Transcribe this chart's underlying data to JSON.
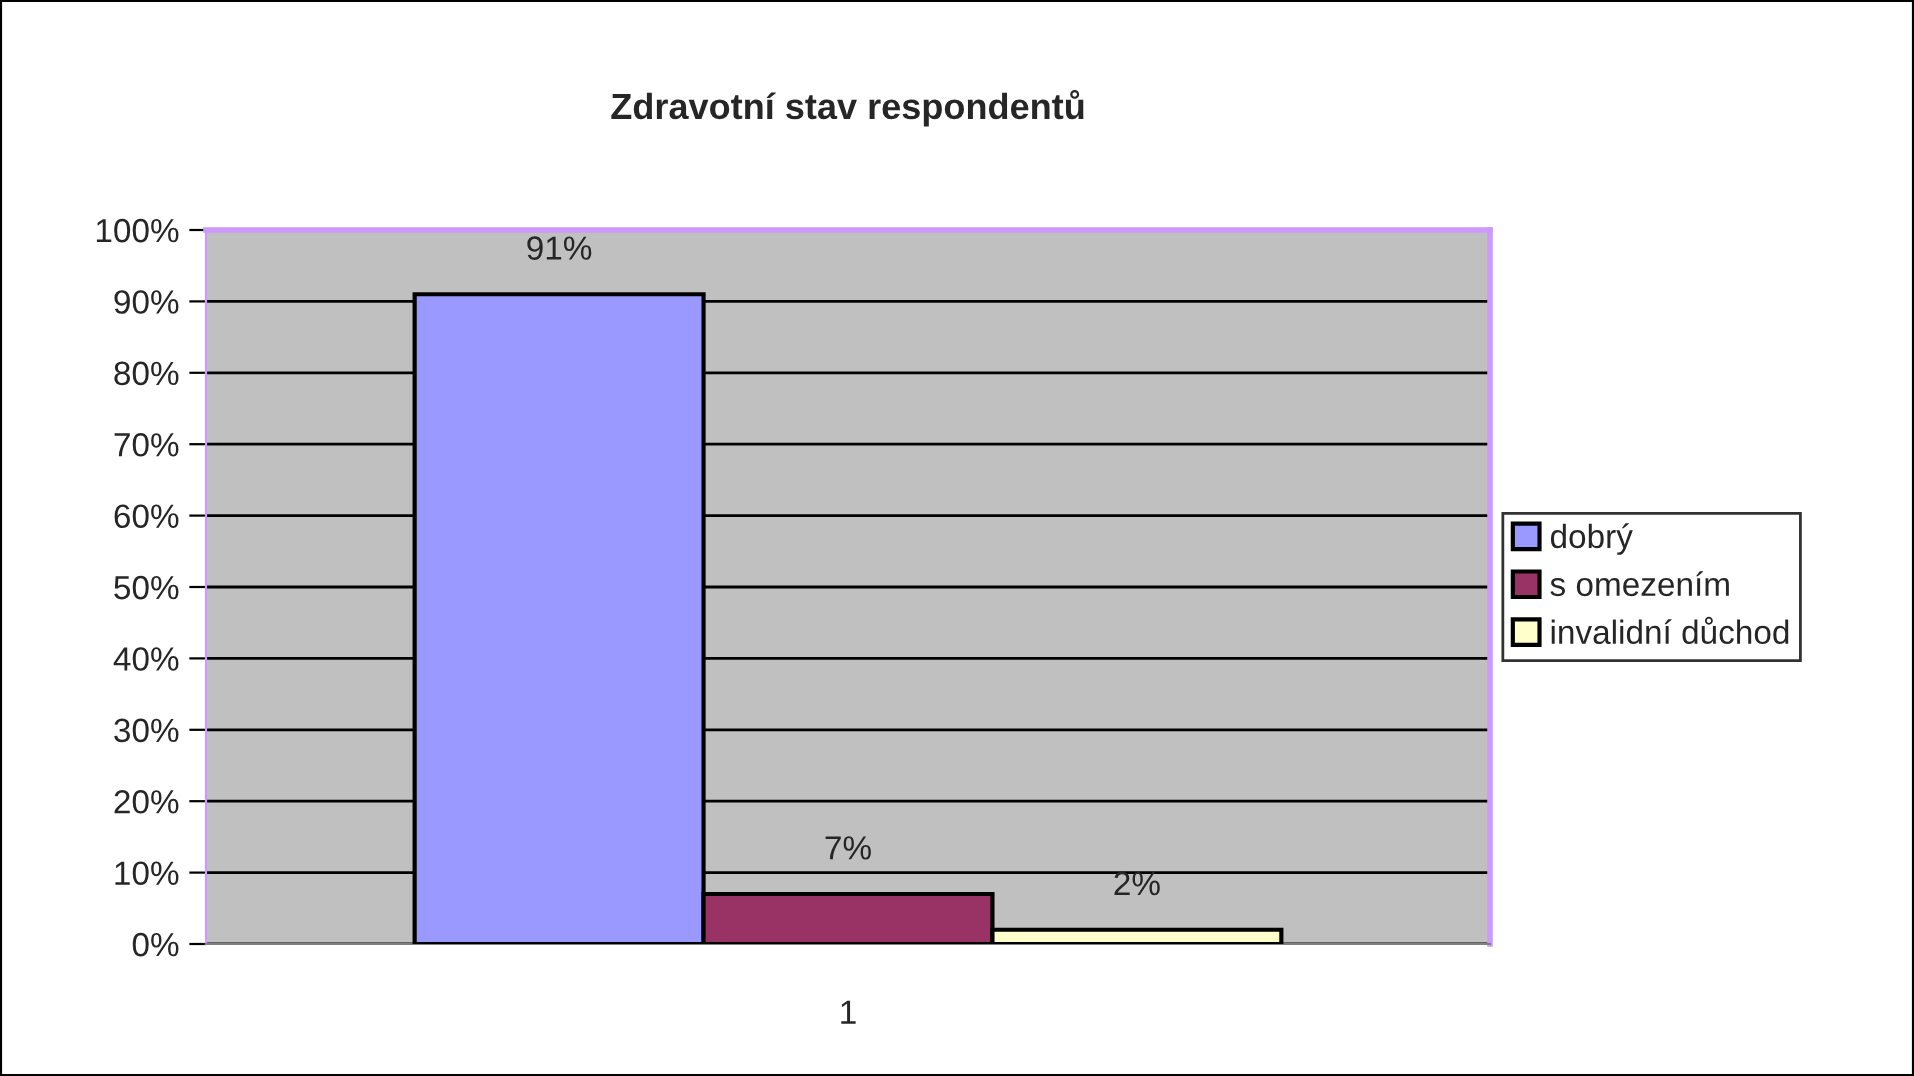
{
  "chart_data": {
    "type": "bar",
    "title": "Zdravotní stav respondentů",
    "categories": [
      "1"
    ],
    "series": [
      {
        "name": "dobrý",
        "color": "#9999ff",
        "values": [
          91
        ],
        "value_labels": [
          "91%"
        ]
      },
      {
        "name": "s omezením",
        "color": "#993366",
        "values": [
          7
        ],
        "value_labels": [
          "7%"
        ]
      },
      {
        "name": "invalidní důchod",
        "color": "#ffffcc",
        "values": [
          2
        ],
        "value_labels": [
          "2%"
        ]
      }
    ],
    "ylim": [
      0,
      100
    ],
    "yticks": [
      {
        "value": 0,
        "label": "0%"
      },
      {
        "value": 10,
        "label": "10%"
      },
      {
        "value": 20,
        "label": "20%"
      },
      {
        "value": 30,
        "label": "30%"
      },
      {
        "value": 40,
        "label": "40%"
      },
      {
        "value": 50,
        "label": "50%"
      },
      {
        "value": 60,
        "label": "60%"
      },
      {
        "value": 70,
        "label": "70%"
      },
      {
        "value": 80,
        "label": "80%"
      },
      {
        "value": 90,
        "label": "90%"
      },
      {
        "value": 100,
        "label": "100%"
      }
    ],
    "grid": "y",
    "legend": "right"
  }
}
